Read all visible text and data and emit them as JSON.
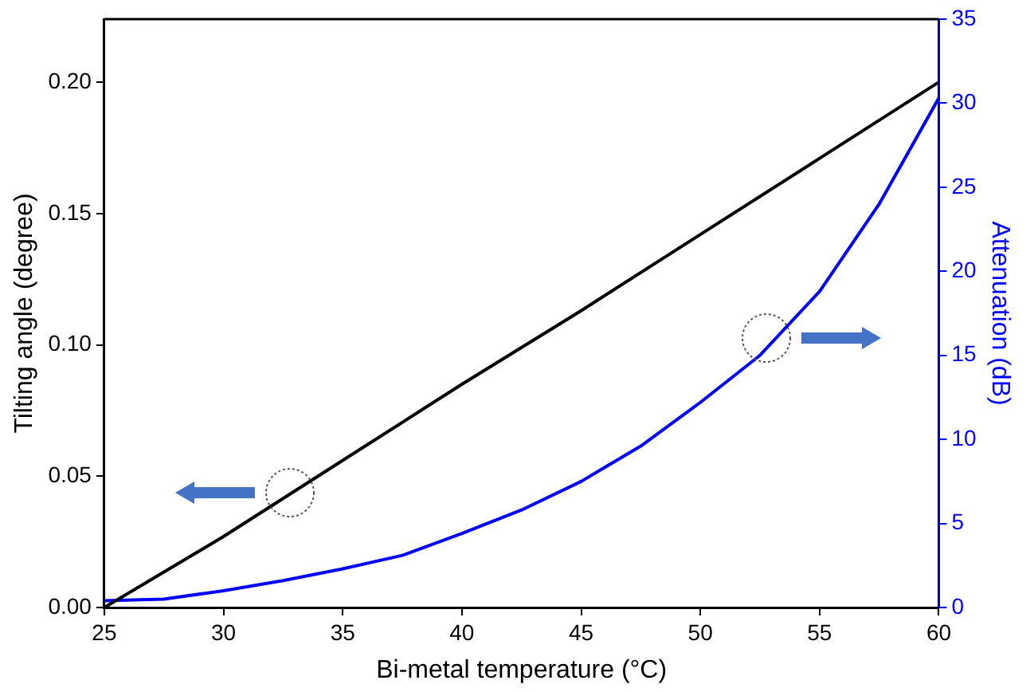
{
  "chart_data": {
    "type": "line",
    "xlabel": "Bi-metal temperature (°C)",
    "ylabel": "Tilting angle (degree)",
    "y2label": "Attenuation (dB)",
    "x": [
      25,
      27.5,
      30,
      32.5,
      35,
      37.5,
      40,
      42.5,
      45,
      47.5,
      50,
      52.5,
      55,
      57.5,
      60
    ],
    "series": [
      {
        "color": "#000000",
        "axis": "y",
        "x": [
          25,
          30,
          35,
          40,
          45,
          50,
          55,
          60
        ],
        "values": [
          0,
          0.027,
          0.056,
          0.085,
          0.113,
          0.142,
          0.171,
          0.2
        ]
      },
      {
        "color": "#0000ff",
        "axis": "y2",
        "values": [
          0.4,
          0.5,
          1.0,
          1.6,
          2.3,
          3.1,
          4.4,
          5.8,
          7.5,
          9.6,
          12.2,
          15,
          18.8,
          24,
          30.3
        ]
      }
    ],
    "xlim": [
      25,
      60
    ],
    "xticks": [
      25,
      30,
      35,
      40,
      45,
      50,
      55,
      60
    ],
    "ylim": [
      0,
      0.224
    ],
    "yticks": [
      {
        "value": 0,
        "label": "0.00"
      },
      {
        "value": 0.05,
        "label": "0.05"
      },
      {
        "value": 0.1,
        "label": "0.10"
      },
      {
        "value": 0.15,
        "label": "0.15"
      },
      {
        "value": 0.2,
        "label": "0.20"
      }
    ],
    "y2lim": [
      0,
      35
    ],
    "y2ticks": [
      0,
      5,
      10,
      15,
      20,
      25,
      30,
      35
    ],
    "grid": false,
    "legend": false,
    "marker": "none",
    "line_style": "solid"
  }
}
